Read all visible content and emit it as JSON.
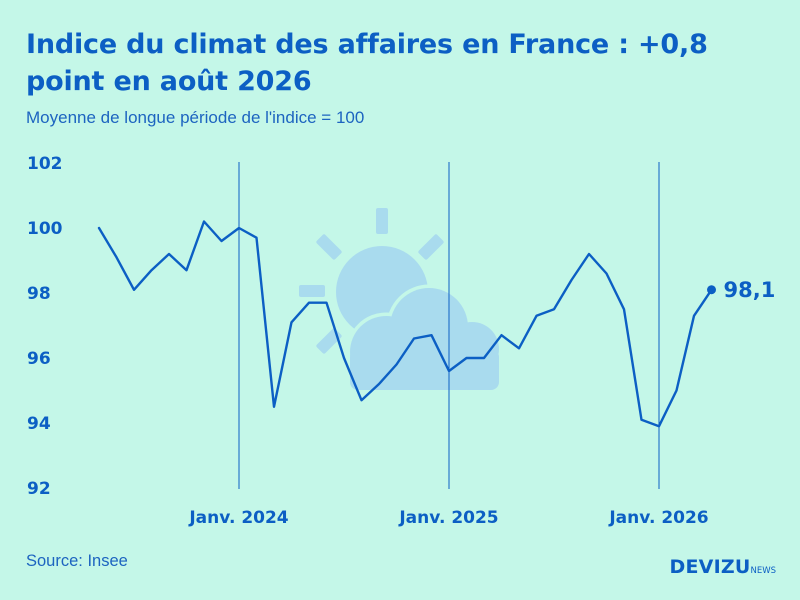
{
  "title": "Indice du climat des affaires en France : +0,8 point en août 2026",
  "subtitle": "Moyenne de longue période de l'indice = 100",
  "source": "Source: Insee",
  "brand": {
    "main": "DEVIZU",
    "sub": "NEWS"
  },
  "colors": {
    "background": "#c4f7e8",
    "line": "#0c5fc4",
    "icon": "#a9dbee"
  },
  "chart_data": {
    "type": "line",
    "title": "Indice du climat des affaires en France : +0,8 point en août 2026",
    "subtitle": "Moyenne de longue période de l'indice = 100",
    "ylim": [
      92,
      102
    ],
    "yticks": [
      "92",
      "94",
      "96",
      "98",
      "100",
      "102"
    ],
    "xtick_labels": [
      "Janv. 2024",
      "Janv. 2025",
      "Janv. 2026"
    ],
    "vertical_gridlines": true,
    "x": [
      "2023-05",
      "2023-06",
      "2023-07",
      "2023-08",
      "2023-09",
      "2023-10",
      "2023-11",
      "2023-12",
      "2024-01",
      "2024-02",
      "2024-03",
      "2024-04",
      "2024-05",
      "2024-06",
      "2024-07",
      "2024-08",
      "2024-09",
      "2024-10",
      "2024-11",
      "2024-12",
      "2025-01",
      "2025-02",
      "2025-03",
      "2025-04",
      "2025-05",
      "2025-06",
      "2025-07",
      "2025-08",
      "2025-09",
      "2025-10",
      "2025-11",
      "2025-12",
      "2026-01",
      "2026-02",
      "2026-03",
      "2026-04",
      "2026-05",
      "2026-06",
      "2026-07",
      "2026-08"
    ],
    "values": [
      100.0,
      99.1,
      98.1,
      98.7,
      99.2,
      98.7,
      100.2,
      99.6,
      100.0,
      99.7,
      94.5,
      97.1,
      97.7,
      97.7,
      96.0,
      94.7,
      95.2,
      95.8,
      96.6,
      96.7,
      95.6,
      96.0,
      96.0,
      96.7,
      96.3,
      97.3,
      97.5,
      98.4,
      99.2,
      98.6,
      97.5,
      94.1,
      93.9,
      95.0,
      97.3,
      98.1,
      null,
      null,
      null,
      null
    ],
    "last_value_label": "98,1"
  }
}
